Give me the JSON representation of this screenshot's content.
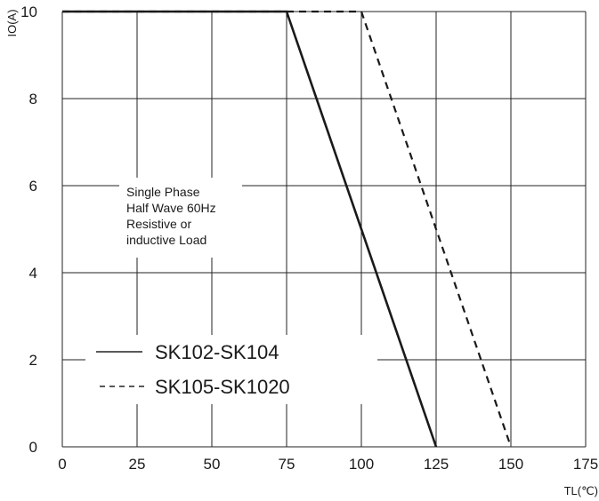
{
  "chart_data": {
    "type": "line",
    "xlabel": "TL(℃)",
    "ylabel": "IO(A)",
    "xlim": [
      0,
      175
    ],
    "ylim": [
      0,
      10
    ],
    "x_ticks": [
      "0",
      "25",
      "50",
      "75",
      "100",
      "125",
      "150",
      "175"
    ],
    "y_ticks": [
      "0",
      "2",
      "4",
      "6",
      "8",
      "10"
    ],
    "grid": true,
    "annotation": [
      "Single Phase",
      "Half Wave 60Hz",
      "Resistive or",
      "inductive Load"
    ],
    "legend_position": "bottom-left",
    "series": [
      {
        "name": "SK102-SK104",
        "style": "solid",
        "x": [
          0,
          75,
          125
        ],
        "y": [
          10,
          10,
          0
        ]
      },
      {
        "name": "SK105-SK1020",
        "style": "dashed",
        "x": [
          0,
          100,
          150
        ],
        "y": [
          10,
          10,
          0
        ]
      }
    ]
  }
}
